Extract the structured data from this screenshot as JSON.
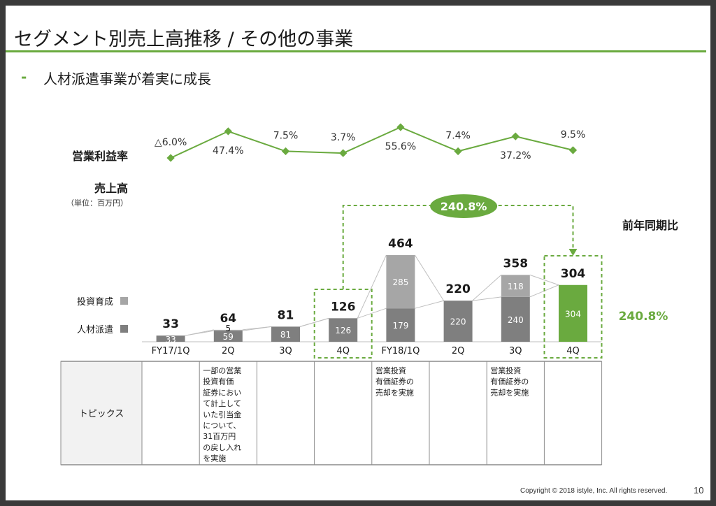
{
  "slide": {
    "title": "セグメント別売上高推移 / その他の事業",
    "bullet_dash": "-",
    "bullet": "人材派遣事業が着実に成長",
    "footer": "Copyright © 2018 istyle, Inc. All rights reserved.",
    "page_number": "10"
  },
  "colors": {
    "accent_green": "#6aaa3f",
    "series_dark": "#7f7f7f",
    "series_light": "#a6a6a6",
    "frame": "#8c8c8c"
  },
  "chart_data": {
    "type": "bar",
    "stacked": true,
    "categories": [
      "FY17/1Q",
      "2Q",
      "3Q",
      "4Q",
      "FY18/1Q",
      "2Q",
      "3Q",
      "4Q"
    ],
    "series": [
      {
        "name": "人材派遣",
        "values": [
          33,
          59,
          81,
          126,
          179,
          220,
          240,
          304
        ],
        "labels": [
          "33",
          "59",
          "81",
          "126",
          "179",
          "220",
          "240",
          "304"
        ]
      },
      {
        "name": "投資育成",
        "values": [
          0,
          5,
          0,
          0,
          285,
          0,
          118,
          0
        ],
        "labels": [
          "",
          "5",
          "",
          "",
          "285",
          "",
          "118",
          ""
        ]
      }
    ],
    "totals": [
      "33",
      "64",
      "81",
      "126",
      "464",
      "220",
      "358",
      "304"
    ],
    "highlight_index": 7,
    "sales_label": "売上高",
    "sales_unit": "（単位：百万円）",
    "legend_placement": "left",
    "margin_line": {
      "label": "営業利益率",
      "values": [
        -6.0,
        47.4,
        7.5,
        3.7,
        55.6,
        7.4,
        37.2,
        9.5
      ],
      "labels": [
        "△6.0%",
        "47.4%",
        "7.5%",
        "3.7%",
        "55.6%",
        "7.4%",
        "37.2%",
        "9.5%"
      ]
    },
    "growth": {
      "title": "前年同期比",
      "value": "240.8%",
      "bubble_value": "240.8%",
      "from_index": 3,
      "to_index": 7
    },
    "topics": {
      "header": "トピックス",
      "cells": [
        "",
        "一部の営業\n投資有価\n証券におい\nて計上して\nいた引当金\nについて、\n31百万円\nの戻し入れ\nを実施",
        "",
        "",
        "営業投資\n有価証券の\n売却を実施",
        "",
        "営業投資\n有価証券の\n売却を実施",
        ""
      ]
    }
  }
}
